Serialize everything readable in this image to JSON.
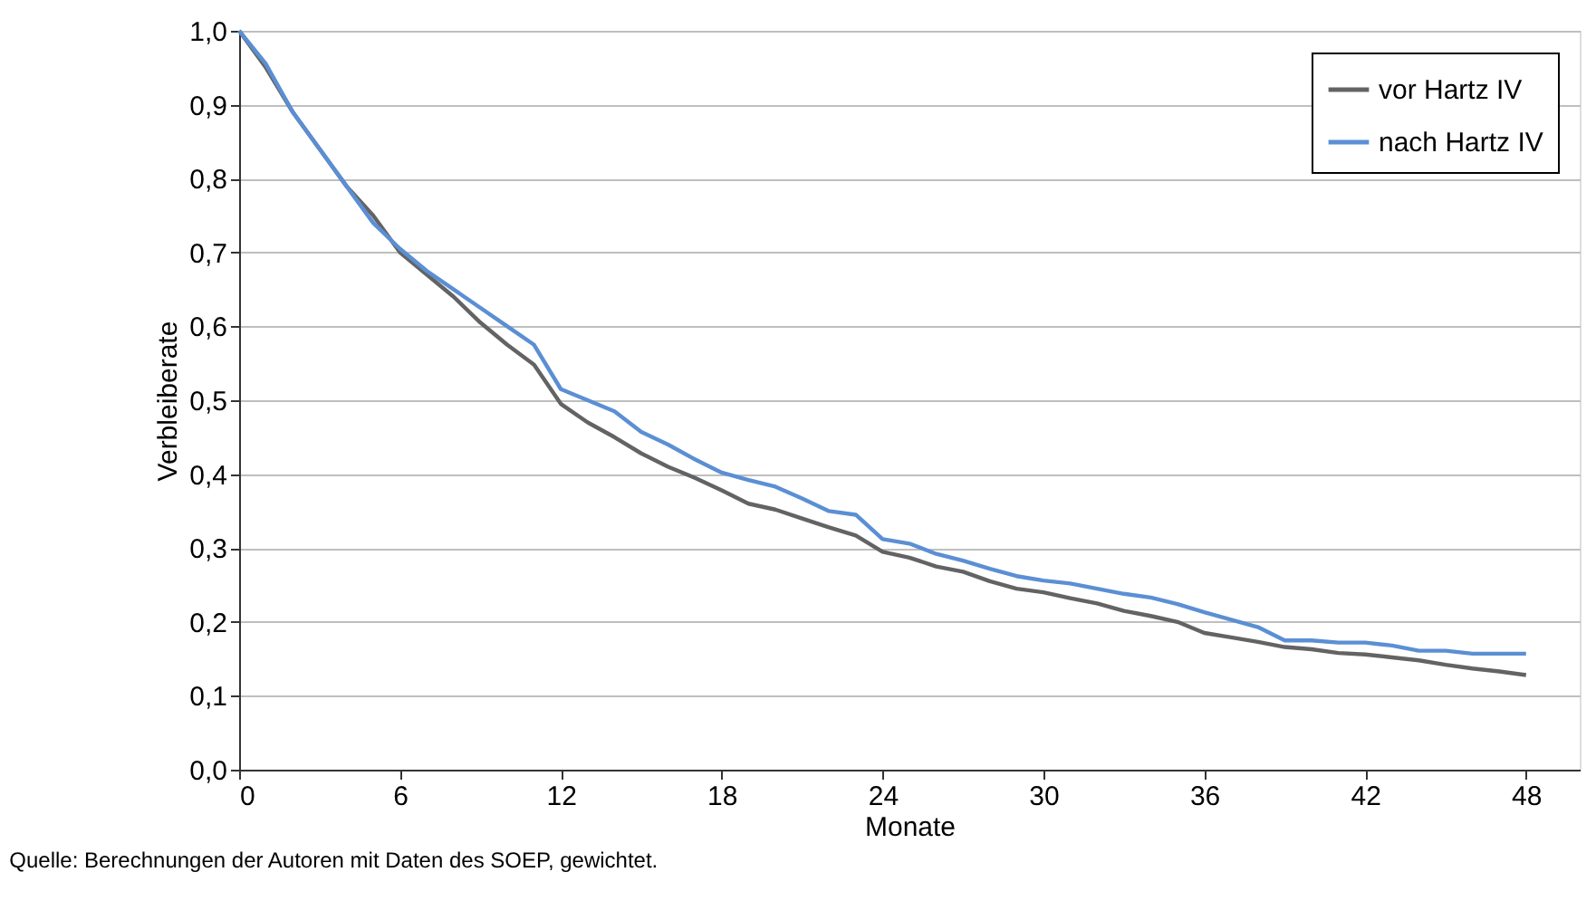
{
  "chart_data": {
    "type": "line",
    "xlabel": "Monate",
    "ylabel": "Verbleiberate",
    "x": [
      0,
      1,
      2,
      3,
      4,
      5,
      6,
      7,
      8,
      9,
      10,
      11,
      12,
      13,
      14,
      15,
      16,
      17,
      18,
      19,
      20,
      21,
      22,
      23,
      24,
      25,
      26,
      27,
      28,
      29,
      30,
      31,
      32,
      33,
      34,
      35,
      36,
      37,
      38,
      39,
      40,
      41,
      42,
      43,
      44,
      45,
      46,
      47,
      48
    ],
    "series": [
      {
        "name": "vor Hartz IV",
        "color": "#636363",
        "values": [
          1.0,
          0.95,
          0.89,
          0.84,
          0.79,
          0.75,
          0.7,
          0.67,
          0.64,
          0.605,
          0.575,
          0.548,
          0.495,
          0.47,
          0.45,
          0.428,
          0.41,
          0.395,
          0.378,
          0.36,
          0.352,
          0.34,
          0.328,
          0.317,
          0.295,
          0.287,
          0.275,
          0.268,
          0.255,
          0.245,
          0.24,
          0.232,
          0.225,
          0.215,
          0.208,
          0.2,
          0.185,
          0.179,
          0.173,
          0.166,
          0.163,
          0.158,
          0.156,
          0.152,
          0.148,
          0.142,
          0.137,
          0.133,
          0.128
        ]
      },
      {
        "name": "nach Hartz IV",
        "color": "#5b8fd4",
        "values": [
          1.0,
          0.955,
          0.89,
          0.84,
          0.79,
          0.74,
          0.705,
          0.675,
          0.65,
          0.625,
          0.6,
          0.575,
          0.515,
          0.5,
          0.485,
          0.457,
          0.44,
          0.42,
          0.402,
          0.392,
          0.383,
          0.367,
          0.35,
          0.345,
          0.312,
          0.306,
          0.292,
          0.283,
          0.272,
          0.262,
          0.256,
          0.252,
          0.245,
          0.238,
          0.233,
          0.224,
          0.213,
          0.203,
          0.193,
          0.175,
          0.175,
          0.172,
          0.172,
          0.168,
          0.161,
          0.161,
          0.157,
          0.157,
          0.157
        ]
      }
    ],
    "xlim": [
      0,
      50
    ],
    "xticks": [
      0,
      6,
      12,
      18,
      24,
      30,
      36,
      42,
      48
    ],
    "ylim": [
      0,
      1.0
    ],
    "yticks": [
      {
        "value": 0,
        "label": "0,0"
      },
      {
        "value": 0.1,
        "label": "0,1"
      },
      {
        "value": 0.2,
        "label": "0,2"
      },
      {
        "value": 0.3,
        "label": "0,3"
      },
      {
        "value": 0.4,
        "label": "0,4"
      },
      {
        "value": 0.5,
        "label": "0,5"
      },
      {
        "value": 0.6,
        "label": "0,6"
      },
      {
        "value": 0.7,
        "label": "0,7"
      },
      {
        "value": 0.8,
        "label": "0,8"
      },
      {
        "value": 0.9,
        "label": "0,9"
      },
      {
        "value": 1.0,
        "label": "1,0"
      }
    ],
    "grid": "y",
    "legend": "top right",
    "marker": "none",
    "line_style": "solid",
    "annotations": [
      "Quelle: Berechnungen der Autoren mit Daten des SOEP, gewichtet."
    ]
  }
}
